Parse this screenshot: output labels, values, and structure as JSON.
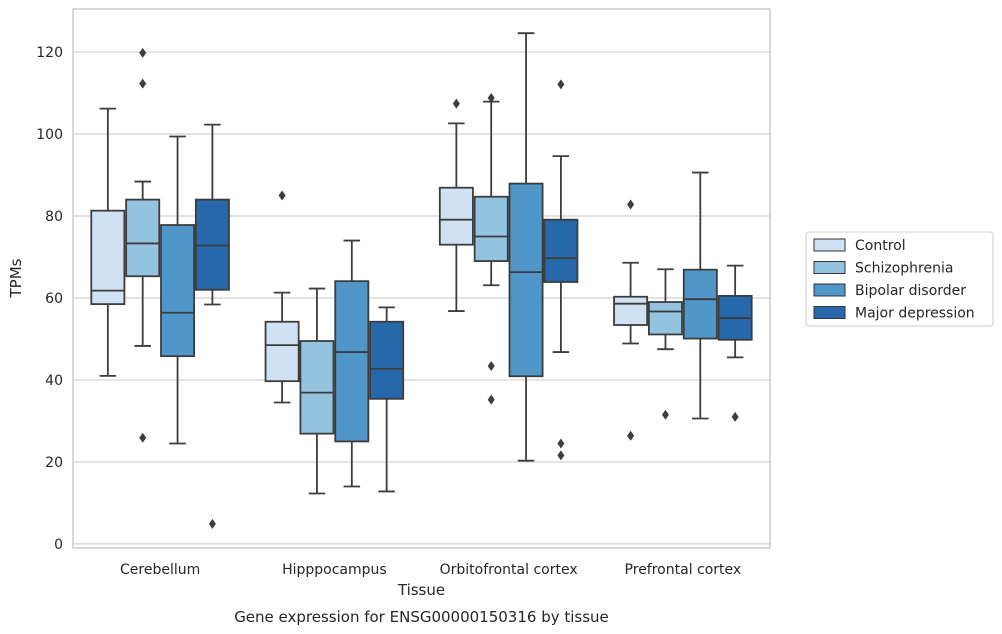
{
  "chart_data": {
    "type": "boxplot",
    "title": "",
    "caption": "Gene expression for ENSG00000150316 by tissue",
    "xlabel": "Tissue",
    "ylabel": "TPMs",
    "ylim": [
      -1,
      130.5
    ],
    "yticks": [
      0,
      20,
      40,
      60,
      80,
      100,
      120
    ],
    "grid": true,
    "legend_position": "right",
    "categories": [
      "Cerebellum",
      "Hipppocampus",
      "Orbitofrontal cortex",
      "Prefrontal cortex"
    ],
    "series": [
      {
        "name": "Control",
        "color": "#cfe1f2",
        "boxes": [
          {
            "whislo": 41,
            "q1": 58.5,
            "med": 61.8,
            "q3": 81.3,
            "whishi": 106.2,
            "fliers": []
          },
          {
            "whislo": 34.5,
            "q1": 39.7,
            "med": 48.5,
            "q3": 54.2,
            "whishi": 61.3,
            "fliers": [
              85
            ]
          },
          {
            "whislo": 56.8,
            "q1": 73,
            "med": 79.1,
            "q3": 86.9,
            "whishi": 102.6,
            "fliers": [
              107.4
            ]
          },
          {
            "whislo": 48.9,
            "q1": 53.4,
            "med": 58.6,
            "q3": 60.3,
            "whishi": 68.6,
            "fliers": [
              82.8,
              26.4
            ]
          }
        ]
      },
      {
        "name": "Schizophrenia",
        "color": "#93c3df",
        "boxes": [
          {
            "whislo": 48.3,
            "q1": 65.3,
            "med": 73.3,
            "q3": 84,
            "whishi": 88.4,
            "fliers": [
              119.8,
              112.3,
              25.9
            ]
          },
          {
            "whislo": 12.3,
            "q1": 26.9,
            "med": 36.9,
            "q3": 49.5,
            "whishi": 62.3,
            "fliers": []
          },
          {
            "whislo": 63.1,
            "q1": 69,
            "med": 75,
            "q3": 84.7,
            "whishi": 107.9,
            "fliers": [
              108.8,
              43.4,
              35.2
            ]
          },
          {
            "whislo": 47.5,
            "q1": 51.1,
            "med": 56.7,
            "q3": 59,
            "whishi": 67,
            "fliers": [
              31.5
            ]
          }
        ]
      },
      {
        "name": "Bipolar disorder",
        "color": "#5196c8",
        "boxes": [
          {
            "whislo": 24.5,
            "q1": 45.8,
            "med": 56.4,
            "q3": 77.8,
            "whishi": 99.4,
            "fliers": []
          },
          {
            "whislo": 14,
            "q1": 25,
            "med": 46.8,
            "q3": 64.1,
            "whishi": 74,
            "fliers": []
          },
          {
            "whislo": 20.3,
            "q1": 40.9,
            "med": 66.3,
            "q3": 87.9,
            "whishi": 124.6,
            "fliers": []
          },
          {
            "whislo": 30.6,
            "q1": 50.1,
            "med": 59.7,
            "q3": 66.9,
            "whishi": 90.6,
            "fliers": []
          }
        ]
      },
      {
        "name": "Major depression",
        "color": "#2768ab",
        "boxes": [
          {
            "whislo": 58.4,
            "q1": 62,
            "med": 72.8,
            "q3": 84,
            "whishi": 102.3,
            "fliers": [
              4.9
            ]
          },
          {
            "whislo": 12.8,
            "q1": 35.4,
            "med": 42.7,
            "q3": 54.2,
            "whishi": 57.7,
            "fliers": []
          },
          {
            "whislo": 46.8,
            "q1": 63.9,
            "med": 69.7,
            "q3": 79.1,
            "whishi": 94.6,
            "fliers": [
              112.1,
              24.5,
              21.6
            ]
          },
          {
            "whislo": 45.5,
            "q1": 49.8,
            "med": 55.1,
            "q3": 60.5,
            "whishi": 67.9,
            "fliers": [
              31
            ]
          }
        ]
      }
    ]
  }
}
